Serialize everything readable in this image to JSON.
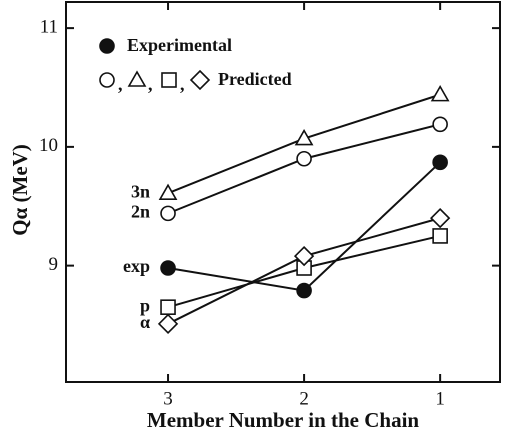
{
  "chart_data": {
    "type": "line",
    "xlabel": "Member Number in the Chain",
    "ylabel": "Qα (MeV)",
    "xlim": [
      3.75,
      0.56
    ],
    "ylim": [
      8.02,
      11.22
    ],
    "xticks": [
      3,
      2,
      1
    ],
    "yticks": [
      9,
      10,
      11
    ],
    "legend": {
      "experimental": "Experimental",
      "predicted": "Predicted",
      "separator": ","
    },
    "series": [
      {
        "name": "3n",
        "marker": "triangle",
        "color": "#111111",
        "x": [
          3,
          2,
          1
        ],
        "values": [
          9.61,
          10.07,
          10.44
        ]
      },
      {
        "name": "2n",
        "marker": "circle",
        "color": "#111111",
        "x": [
          3,
          2,
          1
        ],
        "values": [
          9.44,
          9.9,
          10.19
        ]
      },
      {
        "name": "exp",
        "marker": "circle-filled",
        "color": "#111111",
        "x": [
          3,
          2,
          1
        ],
        "values": [
          8.98,
          8.79,
          9.87
        ]
      },
      {
        "name": "p",
        "marker": "square",
        "color": "#111111",
        "x": [
          3,
          2,
          1
        ],
        "values": [
          8.65,
          8.98,
          9.25
        ]
      },
      {
        "name": "α",
        "marker": "diamond",
        "color": "#111111",
        "x": [
          3,
          2,
          1
        ],
        "values": [
          8.51,
          9.08,
          9.4
        ]
      }
    ]
  }
}
